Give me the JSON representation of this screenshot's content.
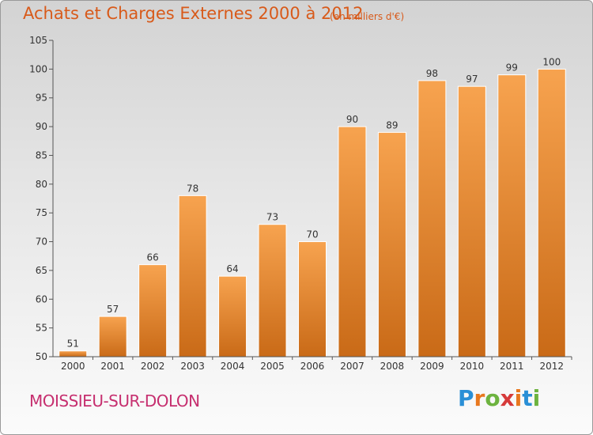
{
  "header": {
    "title": "Achats et Charges Externes 2000 à 2012",
    "subtitle": "(en milliers d'€)"
  },
  "footer": {
    "commune": "MOISSIEU-SUR-DOLON",
    "logo_text": "Proxiti",
    "logo_colors": [
      "#2a8fd6",
      "#e8781e",
      "#6db33f",
      "#d63a3a",
      "#e8781e",
      "#2a8fd6",
      "#6db33f"
    ]
  },
  "chart_data": {
    "type": "bar",
    "categories": [
      "2000",
      "2001",
      "2002",
      "2003",
      "2004",
      "2005",
      "2006",
      "2007",
      "2008",
      "2009",
      "2010",
      "2011",
      "2012"
    ],
    "values": [
      51,
      57,
      66,
      78,
      64,
      73,
      70,
      90,
      89,
      98,
      97,
      99,
      100
    ],
    "value_labels": [
      "51",
      "57",
      "66",
      "78",
      "64",
      "73",
      "70",
      "90",
      "89",
      "98",
      "97",
      "99",
      "100"
    ],
    "ylim": [
      50,
      105
    ],
    "yticks": [
      50,
      55,
      60,
      65,
      70,
      75,
      80,
      85,
      90,
      95,
      100,
      105
    ],
    "ytick_labels": [
      "50",
      "55",
      "60",
      "65",
      "70",
      "75",
      "80",
      "85",
      "90",
      "95",
      "100",
      "105"
    ],
    "grid": false,
    "colors": {
      "bar_top": "#f7a34f",
      "bar_bottom": "#c96a17",
      "axis": "#555555"
    }
  }
}
